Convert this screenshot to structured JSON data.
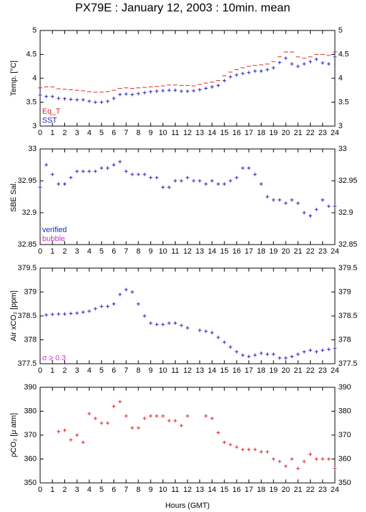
{
  "title": "PX79E : January 12, 2003 : 10min. mean",
  "chart_data": [
    {
      "type": "scatter",
      "ylabel": "Temp. [°C]",
      "legend": "lower left",
      "x": [
        0,
        0.5,
        1,
        1.5,
        2,
        2.5,
        3,
        3.5,
        4,
        4.5,
        5,
        5.5,
        6,
        6.5,
        7,
        7.5,
        8,
        8.5,
        9,
        9.5,
        10,
        10.5,
        11,
        11.5,
        12,
        12.5,
        13,
        13.5,
        14,
        14.5,
        15,
        15.5,
        16,
        16.5,
        17,
        17.5,
        18,
        18.5,
        19,
        19.5,
        20,
        20.5,
        21,
        21.5,
        22,
        22.5,
        23,
        23.5,
        24
      ],
      "series": [
        {
          "name": "Eq_T",
          "color": "#dd2222",
          "marker": "dash",
          "values": [
            3.8,
            3.82,
            3.82,
            3.78,
            3.77,
            3.76,
            3.75,
            3.74,
            3.72,
            3.71,
            3.71,
            3.72,
            3.75,
            3.79,
            3.8,
            3.79,
            3.8,
            3.81,
            3.82,
            3.83,
            3.84,
            3.86,
            3.86,
            3.85,
            3.85,
            3.84,
            3.87,
            3.9,
            3.92,
            3.95,
            4.05,
            4.13,
            4.18,
            4.22,
            4.25,
            4.27,
            4.28,
            4.3,
            4.35,
            4.45,
            4.55,
            4.55,
            4.45,
            4.42,
            4.45,
            4.5,
            4.5,
            4.48,
            4.55
          ]
        },
        {
          "name": "SST",
          "color": "#2222bb",
          "marker": "plus",
          "values": [
            3.65,
            3.62,
            3.62,
            3.58,
            3.57,
            3.56,
            3.55,
            3.55,
            3.52,
            3.5,
            3.5,
            3.52,
            3.58,
            3.66,
            3.67,
            3.66,
            3.68,
            3.7,
            3.72,
            3.73,
            3.74,
            3.75,
            3.75,
            3.73,
            3.73,
            3.74,
            3.76,
            3.79,
            3.82,
            3.85,
            3.95,
            4.03,
            4.07,
            4.1,
            4.12,
            4.15,
            4.15,
            4.18,
            4.22,
            4.33,
            4.42,
            4.3,
            4.25,
            4.3,
            4.35,
            4.4,
            4.32,
            4.3,
            4.45
          ]
        }
      ],
      "xlim": [
        0,
        24
      ],
      "xticks": [
        0,
        1,
        2,
        3,
        4,
        5,
        6,
        7,
        8,
        9,
        10,
        11,
        12,
        13,
        14,
        15,
        16,
        17,
        18,
        19,
        20,
        21,
        22,
        23,
        24
      ],
      "ylim": [
        3,
        5
      ],
      "yticks": [
        3,
        3.5,
        4,
        4.5,
        5
      ]
    },
    {
      "type": "scatter",
      "ylabel": "SBE Sal.",
      "legend": "lower left",
      "x": [
        0,
        0.5,
        1,
        1.5,
        2,
        2.5,
        3,
        3.5,
        4,
        4.5,
        5,
        5.5,
        6,
        6.5,
        7,
        7.5,
        8,
        8.5,
        9,
        9.5,
        10,
        10.5,
        11,
        11.5,
        12,
        12.5,
        13,
        13.5,
        14,
        14.5,
        15,
        15.5,
        16,
        16.5,
        17,
        17.5,
        18,
        18.5,
        19,
        19.5,
        20,
        20.5,
        21,
        21.5,
        22,
        22.5,
        23,
        23.5,
        24
      ],
      "series": [
        {
          "name": "verified",
          "color": "#2222bb",
          "marker": "plus",
          "values": [
            32.94,
            32.975,
            32.96,
            32.945,
            32.945,
            32.955,
            32.965,
            32.965,
            32.965,
            32.965,
            32.97,
            32.97,
            32.975,
            32.98,
            32.965,
            32.96,
            32.96,
            32.96,
            32.955,
            32.955,
            32.94,
            32.94,
            32.95,
            32.95,
            32.955,
            32.95,
            32.95,
            32.945,
            32.95,
            32.945,
            32.945,
            32.95,
            32.955,
            32.97,
            32.97,
            32.96,
            32.945,
            32.925,
            32.92,
            32.92,
            32.915,
            32.92,
            32.915,
            32.9,
            32.895,
            32.905,
            32.92,
            32.91,
            32.91
          ]
        }
      ],
      "annotations": [
        {
          "text": "bubble",
          "color": "#cc33cc"
        }
      ],
      "xlim": [
        0,
        24
      ],
      "xticks": [
        0,
        1,
        2,
        3,
        4,
        5,
        6,
        7,
        8,
        9,
        10,
        11,
        12,
        13,
        14,
        15,
        16,
        17,
        18,
        19,
        20,
        21,
        22,
        23,
        24
      ],
      "ylim": [
        32.85,
        33
      ],
      "yticks": [
        32.85,
        32.9,
        32.95,
        33
      ]
    },
    {
      "type": "scatter",
      "ylabel": "Air xCO₂ [ppm]",
      "legend": "lower left",
      "x": [
        0,
        0.5,
        1,
        1.5,
        2,
        2.5,
        3,
        3.5,
        4,
        4.5,
        5,
        5.5,
        6,
        6.5,
        7,
        7.5,
        8,
        8.5,
        9,
        9.5,
        10,
        10.5,
        11,
        11.5,
        12,
        12.5,
        13,
        13.5,
        14,
        14.5,
        15,
        15.5,
        16,
        16.5,
        17,
        17.5,
        18,
        18.5,
        19,
        19.5,
        20,
        20.5,
        21,
        21.5,
        22,
        22.5,
        23,
        23.5,
        24
      ],
      "series": [
        {
          "color": "#2222bb",
          "marker": "plus",
          "values": [
            null,
            378.52,
            378.53,
            378.54,
            378.54,
            378.55,
            378.56,
            378.58,
            378.6,
            378.65,
            378.7,
            378.7,
            378.75,
            378.95,
            379.05,
            379,
            378.75,
            378.5,
            378.35,
            378.32,
            378.32,
            378.35,
            378.35,
            378.3,
            378.25,
            null,
            378.2,
            378.18,
            378.15,
            378.05,
            377.95,
            377.85,
            377.75,
            377.68,
            377.65,
            377.68,
            377.72,
            377.7,
            377.7,
            377.62,
            377.62,
            377.65,
            377.7,
            377.75,
            377.78,
            377.75,
            377.78,
            377.8,
            377.82
          ]
        }
      ],
      "annotations": [
        {
          "text": "σ ≥ 0.3",
          "color": "#cc33cc"
        }
      ],
      "xlim": [
        0,
        24
      ],
      "xticks": [
        0,
        1,
        2,
        3,
        4,
        5,
        6,
        7,
        8,
        9,
        10,
        11,
        12,
        13,
        14,
        15,
        16,
        17,
        18,
        19,
        20,
        21,
        22,
        23,
        24
      ],
      "ylim": [
        377.5,
        379.5
      ],
      "yticks": [
        377.5,
        378,
        378.5,
        379,
        379.5
      ]
    },
    {
      "type": "scatter",
      "ylabel": "ρCO₂ [μ atm]",
      "xlabel": "Hours (GMT)",
      "x": [
        0,
        0.5,
        1,
        1.5,
        2,
        2.5,
        3,
        3.5,
        4,
        4.5,
        5,
        5.5,
        6,
        6.5,
        7,
        7.5,
        8,
        8.5,
        9,
        9.5,
        10,
        10.5,
        11,
        11.5,
        12,
        12.5,
        13,
        13.5,
        14,
        14.5,
        15,
        15.5,
        16,
        16.5,
        17,
        17.5,
        18,
        18.5,
        19,
        19.5,
        20,
        20.5,
        21,
        21.5,
        22,
        22.5,
        23,
        23.5,
        24
      ],
      "series": [
        {
          "color": "#dd2222",
          "marker": "plus",
          "values": [
            null,
            null,
            null,
            371.5,
            372,
            368,
            370,
            367,
            379,
            377,
            375,
            375,
            382,
            384,
            378,
            373,
            373,
            377,
            378,
            378,
            378,
            376,
            376,
            374,
            378,
            null,
            null,
            378,
            377,
            371,
            367,
            366,
            365,
            364,
            364,
            364,
            363,
            363,
            360,
            359,
            357,
            360,
            356,
            359,
            362,
            360,
            360,
            360,
            356
          ]
        }
      ],
      "xlim": [
        0,
        24
      ],
      "xticks": [
        0,
        1,
        2,
        3,
        4,
        5,
        6,
        7,
        8,
        9,
        10,
        11,
        12,
        13,
        14,
        15,
        16,
        17,
        18,
        19,
        20,
        21,
        22,
        23,
        24
      ],
      "ylim": [
        350,
        390
      ],
      "yticks": [
        350,
        360,
        370,
        380,
        390
      ]
    }
  ]
}
